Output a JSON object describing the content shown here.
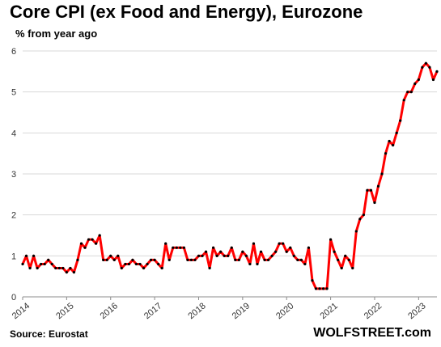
{
  "title": "Core CPI (ex Food and Energy), Eurozone",
  "subtitle": "% from year ago",
  "source": "Source: Eurostat",
  "brand": "WOLFSTREET.com",
  "chart_data": {
    "type": "line",
    "title": "Core CPI (ex Food and Energy), Eurozone",
    "ylabel": "% from year ago",
    "ylim": [
      0,
      6
    ],
    "yticks": [
      0,
      1,
      2,
      3,
      4,
      5,
      6
    ],
    "xticks": [
      "2014",
      "2015",
      "2016",
      "2017",
      "2018",
      "2019",
      "2020",
      "2021",
      "2022",
      "2023"
    ],
    "grid": "horizontal",
    "line_color": "#ff0000",
    "marker_color": "#000000",
    "start": "2014-01",
    "end": "2023-06",
    "series": [
      {
        "values": [
          0.8,
          1.0,
          0.7,
          1.0,
          0.7,
          0.8,
          0.8,
          0.9,
          0.8,
          0.7,
          0.7,
          0.7,
          0.6,
          0.7,
          0.6,
          0.9,
          1.3,
          1.2,
          1.4,
          1.4,
          1.3,
          1.5,
          0.9,
          0.9,
          1.0,
          0.9,
          1.0,
          0.7,
          0.8,
          0.8,
          0.9,
          0.8,
          0.8,
          0.7,
          0.8,
          0.9,
          0.9,
          0.8,
          0.7,
          1.3,
          0.9,
          1.2,
          1.2,
          1.2,
          1.2,
          0.9,
          0.9,
          0.9,
          1.0,
          1.0,
          1.1,
          0.7,
          1.2,
          1.0,
          1.1,
          1.0,
          1.0,
          1.2,
          0.9,
          0.9,
          1.1,
          1.0,
          0.8,
          1.3,
          0.8,
          1.1,
          0.9,
          0.9,
          1.0,
          1.1,
          1.3,
          1.3,
          1.1,
          1.2,
          1.0,
          0.9,
          0.9,
          0.8,
          1.2,
          0.4,
          0.2,
          0.2,
          0.2,
          0.2,
          1.4,
          1.1,
          0.9,
          0.7,
          1.0,
          0.9,
          0.7,
          1.6,
          1.9,
          2.0,
          2.6,
          2.6,
          2.3,
          2.7,
          3.0,
          3.5,
          3.8,
          3.7,
          4.0,
          4.3,
          4.8,
          5.0,
          5.0,
          5.2,
          5.3,
          5.6,
          5.7,
          5.6,
          5.3,
          5.5
        ]
      }
    ]
  }
}
